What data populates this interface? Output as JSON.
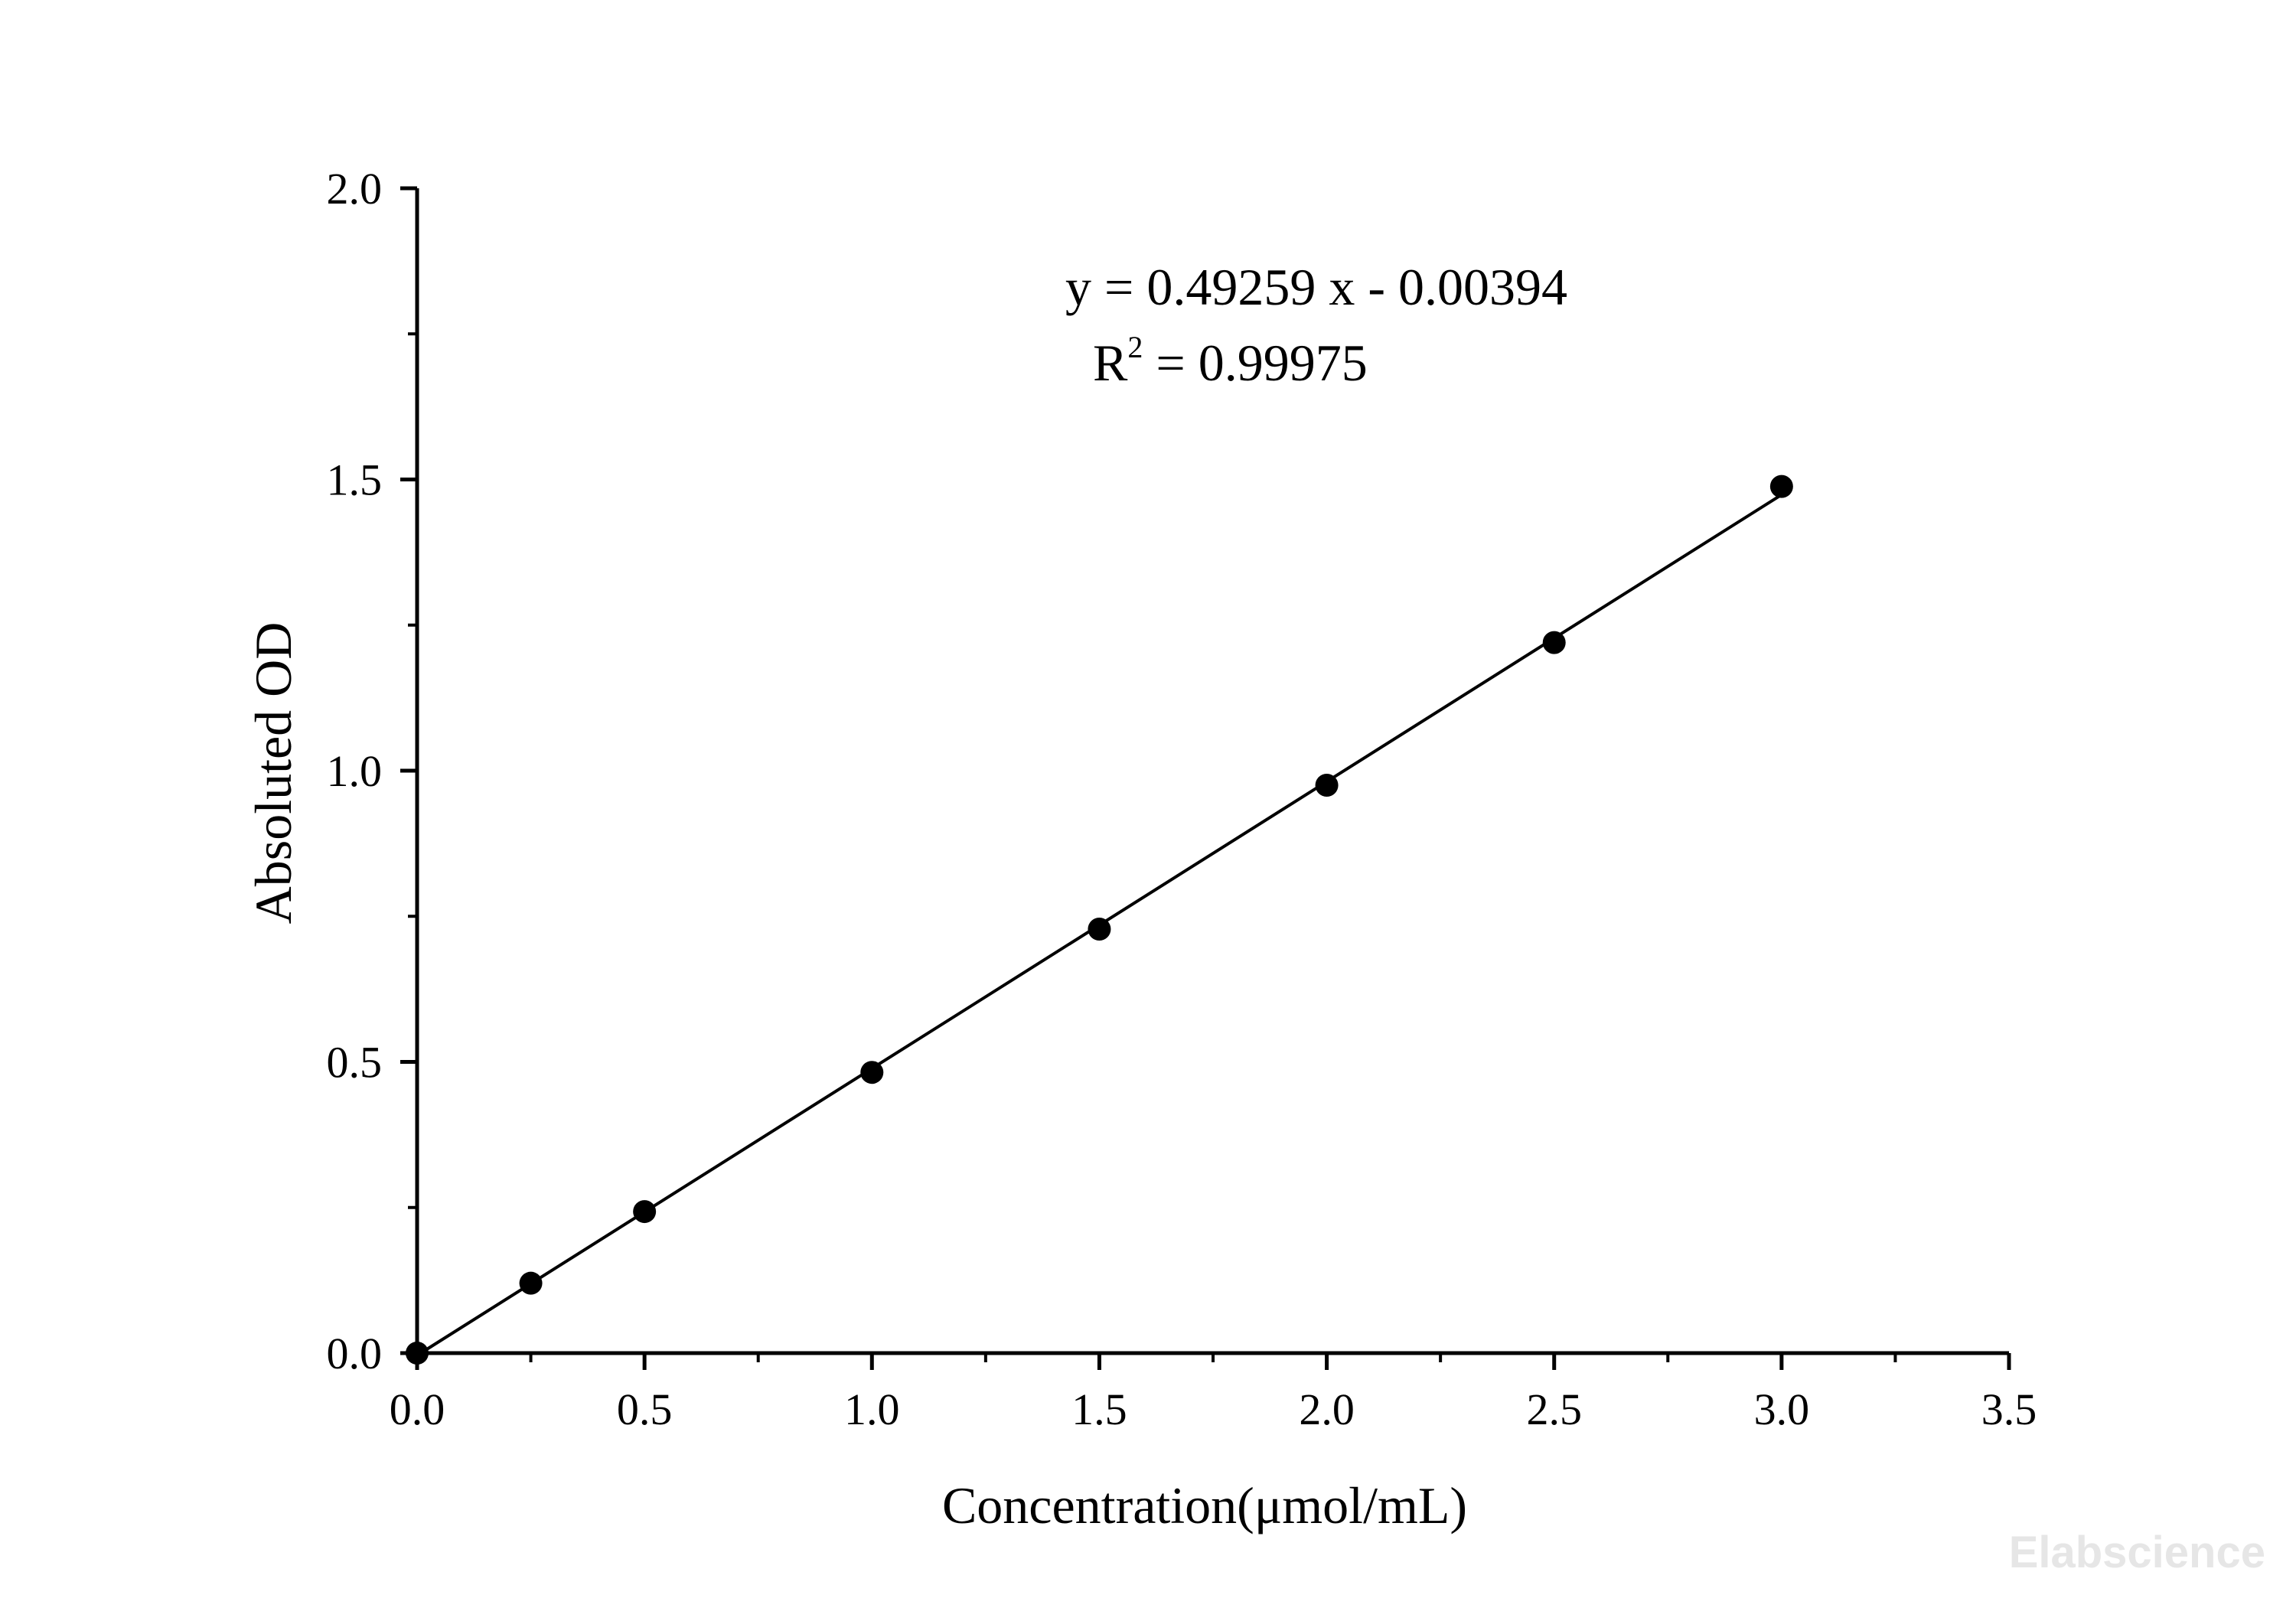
{
  "chart_data": {
    "type": "scatter",
    "xlabel": "Concentration(μmol/mL)",
    "ylabel": "Absoluted OD",
    "xlim": [
      0,
      3.5
    ],
    "ylim": [
      0,
      2.0
    ],
    "x_ticks": [
      "0.0",
      "0.5",
      "1.0",
      "1.5",
      "2.0",
      "2.5",
      "3.0",
      "3.5"
    ],
    "y_ticks": [
      "0.0",
      "0.5",
      "1.0",
      "1.5",
      "2.0"
    ],
    "series": [
      {
        "x": [
          0,
          0.25,
          0.5,
          1.0,
          1.5,
          2.0,
          2.5,
          3.0
        ],
        "y": [
          0.0,
          0.12,
          0.243,
          0.482,
          0.728,
          0.975,
          1.22,
          1.488
        ]
      }
    ],
    "fit_line": {
      "slope": 0.49259,
      "intercept": -0.00394,
      "x_range": [
        0,
        3.0
      ]
    },
    "equation": "y = 0.49259 x - 0.00394",
    "r2_label": "R",
    "r2_sup": "2",
    "r2_value": " = 0.99975",
    "grid": false,
    "legend": false,
    "colors": {
      "marker": "#000000",
      "line": "#000000",
      "axis": "#000000"
    }
  },
  "watermark": "Elabscience"
}
